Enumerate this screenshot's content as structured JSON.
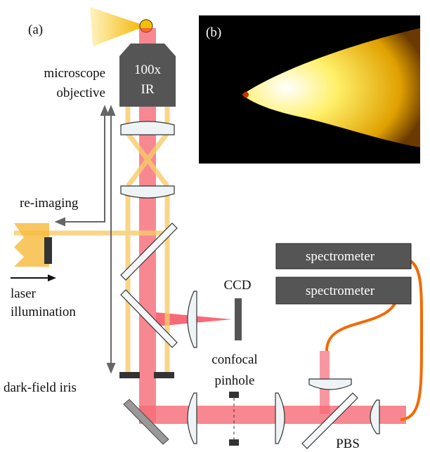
{
  "panels": {
    "a": "(a)",
    "b": "(b)"
  },
  "objective": {
    "magnification": "100x",
    "type": "IR",
    "label_line1": "microscope",
    "label_line2": "objective"
  },
  "labels": {
    "reimaging": "re-imaging",
    "laser_line1": "laser",
    "laser_line2": "illumination",
    "ccd": "CCD",
    "confocal_line1": "confocal",
    "confocal_line2": "pinhole",
    "iris": "dark-field iris",
    "pbs": "PBS"
  },
  "spectrometers": [
    "spectrometer",
    "spectrometer"
  ]
}
